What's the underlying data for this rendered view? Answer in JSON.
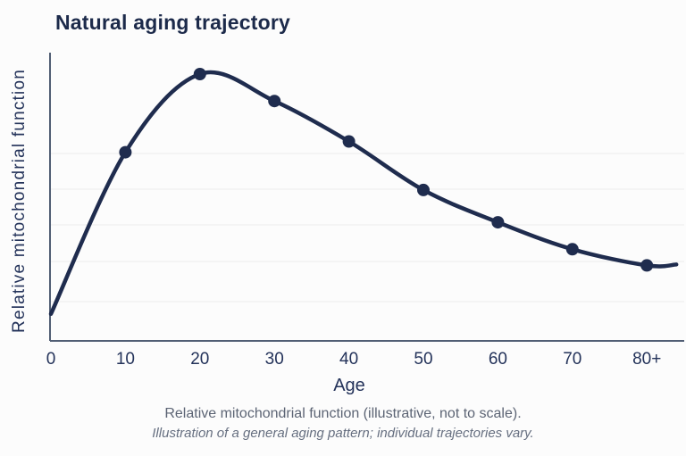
{
  "title": "Natural aging trajectory",
  "captions": {
    "primary": "Relative mitochondrial function (illustrative, not to scale).",
    "secondary": "Illustration of a general aging pattern; individual trajectories vary."
  },
  "chart_data": {
    "type": "line",
    "title": "Natural aging trajectory",
    "xlabel": "Age",
    "ylabel": "Relative mitochondrial function",
    "x": [
      0,
      10,
      20,
      30,
      40,
      50,
      60,
      70,
      80
    ],
    "x_tick_labels": [
      "0",
      "10",
      "20",
      "30",
      "40",
      "50",
      "60",
      "70",
      "80+"
    ],
    "series": [
      {
        "name": "Relative mitochondrial function",
        "values": [
          0.1,
          0.7,
          0.99,
          0.89,
          0.74,
          0.56,
          0.44,
          0.34,
          0.28
        ],
        "markers": [
          false,
          true,
          true,
          true,
          true,
          true,
          true,
          true,
          true
        ]
      }
    ],
    "ylim": [
      0,
      1.05
    ],
    "y_tick_labels": "none",
    "gridlines": "horizontal-faint",
    "legend_position": "none",
    "curve_style": "smooth",
    "curve_extends_past_last_point": true,
    "annotation": "curve rises steeply from age 0, peaks just after age 20, then declines gradually and flattens toward 80+"
  },
  "colors": {
    "background": "#fcfcfc",
    "line": "#1f2c4e",
    "marker": "#1f2c4e",
    "title_text": "#1c2a4a",
    "axis_line": "#515e74",
    "tick_text": "#24335a",
    "grid_line": "#ededed",
    "caption_text": "#5c6474",
    "subcaption_text": "#666f80"
  }
}
